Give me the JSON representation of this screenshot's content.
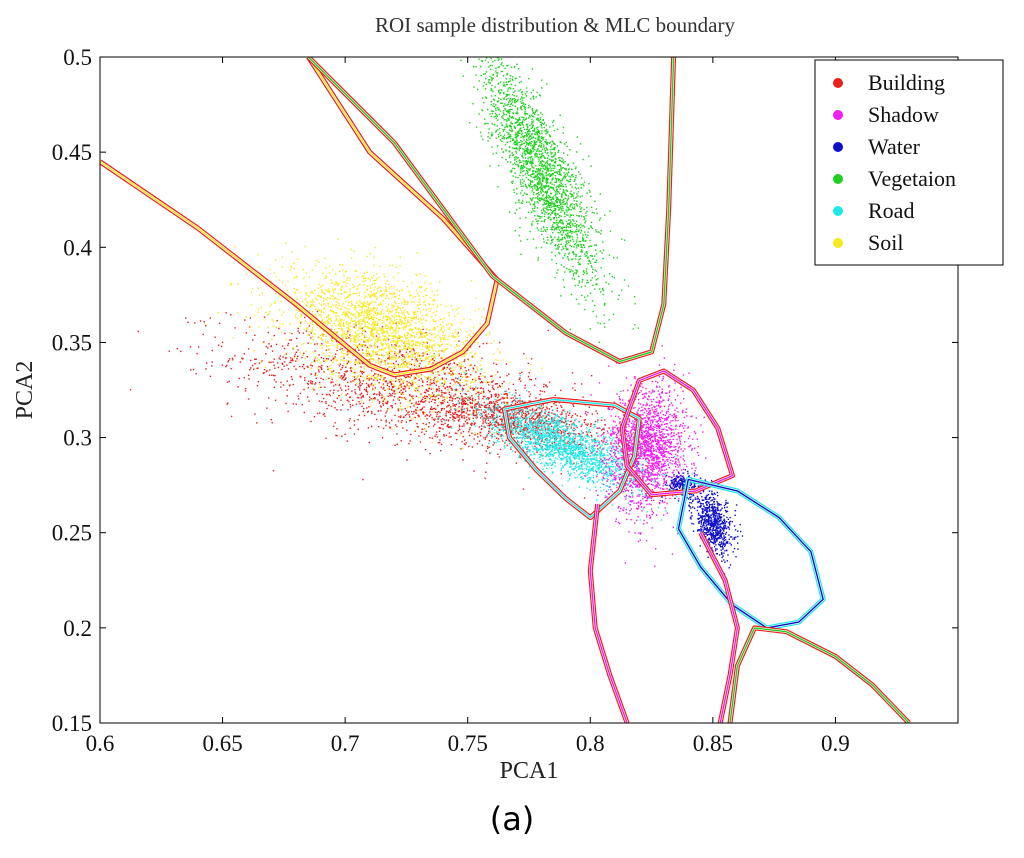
{
  "caption": "(a)",
  "chart_data": {
    "type": "scatter",
    "title": "ROI sample distribution & MLC boundary",
    "xlabel": "PCA1",
    "ylabel": "PCA2",
    "xlim": [
      0.6,
      0.95
    ],
    "ylim": [
      0.15,
      0.5
    ],
    "xticks": [
      0.6,
      0.65,
      0.7,
      0.75,
      0.8,
      0.85,
      0.9
    ],
    "yticks": [
      0.15,
      0.2,
      0.25,
      0.3,
      0.35,
      0.4,
      0.45,
      0.5
    ],
    "xtick_labels": [
      "0.6",
      "0.65",
      "0.7",
      "0.75",
      "0.8",
      "0.85",
      "0.9"
    ],
    "ytick_labels": [
      "0.15",
      "0.2",
      "0.25",
      "0.3",
      "0.35",
      "0.4",
      "0.45",
      "0.5"
    ],
    "grid": false,
    "legend_position": "top-right",
    "series": [
      {
        "name": "Building",
        "color": "#e8201e",
        "clusters": [
          {
            "cx": 0.725,
            "cy": 0.325,
            "sx": 0.035,
            "sy": 0.016,
            "rho": -0.55,
            "n": 1500
          },
          {
            "cx": 0.77,
            "cy": 0.31,
            "sx": 0.018,
            "sy": 0.008,
            "rho": -0.5,
            "n": 900
          }
        ]
      },
      {
        "name": "Shadow",
        "color": "#f01ef0",
        "clusters": [
          {
            "cx": 0.823,
            "cy": 0.295,
            "sx": 0.008,
            "sy": 0.016,
            "rho": 0.1,
            "n": 1800
          }
        ]
      },
      {
        "name": "Water",
        "color": "#1010c8",
        "clusters": [
          {
            "cx": 0.85,
            "cy": 0.255,
            "sx": 0.004,
            "sy": 0.008,
            "rho": -0.4,
            "n": 700
          },
          {
            "cx": 0.837,
            "cy": 0.275,
            "sx": 0.003,
            "sy": 0.003,
            "rho": 0,
            "n": 200
          }
        ]
      },
      {
        "name": "Vegetaion",
        "color": "#20d020",
        "clusters": [
          {
            "cx": 0.78,
            "cy": 0.44,
            "sx": 0.012,
            "sy": 0.03,
            "rho": -0.82,
            "n": 2200
          }
        ]
      },
      {
        "name": "Road",
        "color": "#20e8e8",
        "clusters": [
          {
            "cx": 0.79,
            "cy": 0.295,
            "sx": 0.016,
            "sy": 0.011,
            "rho": -0.75,
            "n": 1800
          }
        ]
      },
      {
        "name": "Soil",
        "color": "#f8e81e",
        "clusters": [
          {
            "cx": 0.715,
            "cy": 0.355,
            "sx": 0.02,
            "sy": 0.016,
            "rho": -0.45,
            "n": 2200
          }
        ]
      }
    ],
    "boundaries": [
      {
        "class": "Soil",
        "color_outer": "#e8201e",
        "color_inner": "#f8e81e",
        "points": [
          [
            0.6,
            0.445
          ],
          [
            0.64,
            0.41
          ],
          [
            0.68,
            0.37
          ],
          [
            0.71,
            0.338
          ],
          [
            0.72,
            0.333
          ],
          [
            0.735,
            0.336
          ],
          [
            0.748,
            0.345
          ],
          [
            0.758,
            0.36
          ],
          [
            0.762,
            0.383
          ],
          [
            0.74,
            0.415
          ],
          [
            0.71,
            0.45
          ],
          [
            0.685,
            0.5
          ]
        ]
      },
      {
        "class": "Vegetaion",
        "color_outer": "#e8201e",
        "color_inner": "#20d020",
        "points": [
          [
            0.685,
            0.5
          ],
          [
            0.72,
            0.455
          ],
          [
            0.76,
            0.385
          ],
          [
            0.79,
            0.355
          ],
          [
            0.812,
            0.34
          ],
          [
            0.825,
            0.345
          ],
          [
            0.83,
            0.37
          ],
          [
            0.832,
            0.42
          ],
          [
            0.834,
            0.5
          ]
        ]
      },
      {
        "class": "Road",
        "color_outer": "#e8201e",
        "color_inner": "#20e8e8",
        "points": [
          [
            0.765,
            0.315
          ],
          [
            0.785,
            0.32
          ],
          [
            0.81,
            0.317
          ],
          [
            0.82,
            0.31
          ],
          [
            0.818,
            0.29
          ],
          [
            0.812,
            0.272
          ],
          [
            0.8,
            0.258
          ],
          [
            0.79,
            0.268
          ],
          [
            0.778,
            0.283
          ],
          [
            0.767,
            0.3
          ]
        ]
      },
      {
        "class": "Shadow",
        "color_outer": "#e8201e",
        "color_inner": "#f01ef0",
        "points": [
          [
            0.82,
            0.33
          ],
          [
            0.83,
            0.335
          ],
          [
            0.842,
            0.325
          ],
          [
            0.852,
            0.305
          ],
          [
            0.858,
            0.28
          ],
          [
            0.843,
            0.272
          ],
          [
            0.825,
            0.27
          ],
          [
            0.815,
            0.285
          ],
          [
            0.813,
            0.305
          ]
        ]
      },
      {
        "class": "Water",
        "color_outer": "#20e8e8",
        "color_inner": "#1010c8",
        "points": [
          [
            0.84,
            0.278
          ],
          [
            0.86,
            0.272
          ],
          [
            0.877,
            0.258
          ],
          [
            0.89,
            0.24
          ],
          [
            0.895,
            0.215
          ],
          [
            0.885,
            0.203
          ],
          [
            0.872,
            0.2
          ],
          [
            0.858,
            0.212
          ],
          [
            0.845,
            0.232
          ],
          [
            0.836,
            0.252
          ]
        ]
      },
      {
        "class": "Shadow",
        "color_outer": "#e8201e",
        "color_inner": "#f01ef0",
        "points": [
          [
            0.803,
            0.265
          ],
          [
            0.8,
            0.23
          ],
          [
            0.802,
            0.2
          ],
          [
            0.808,
            0.175
          ],
          [
            0.815,
            0.15
          ]
        ]
      },
      {
        "class": "Shadow",
        "color_outer": "#e8201e",
        "color_inner": "#f01ef0",
        "points": [
          [
            0.845,
            0.25
          ],
          [
            0.855,
            0.225
          ],
          [
            0.86,
            0.2
          ],
          [
            0.857,
            0.175
          ],
          [
            0.853,
            0.15
          ]
        ]
      },
      {
        "class": "Vegetaion",
        "color_outer": "#e8201e",
        "color_inner": "#20d020",
        "points": [
          [
            0.857,
            0.15
          ],
          [
            0.86,
            0.18
          ],
          [
            0.867,
            0.2
          ],
          [
            0.88,
            0.198
          ],
          [
            0.9,
            0.185
          ],
          [
            0.915,
            0.17
          ],
          [
            0.93,
            0.15
          ]
        ]
      }
    ]
  }
}
